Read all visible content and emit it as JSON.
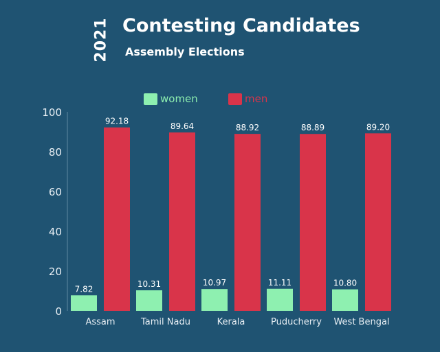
{
  "header": {
    "year": "2021",
    "title": "Contesting Candidates",
    "subtitle": "Assembly Elections"
  },
  "colors": {
    "background": "#1f5372",
    "women": "#8ef0b0",
    "men": "#d9344a",
    "axis_text": "#e7eef3"
  },
  "chart_data": {
    "type": "bar",
    "categories": [
      "Assam",
      "Tamil Nadu",
      "Kerala",
      "Puducherry",
      "West Bengal"
    ],
    "series": [
      {
        "name": "women",
        "color": "#8ef0b0",
        "values": [
          7.82,
          10.31,
          10.97,
          11.11,
          10.8
        ],
        "labels": [
          "7.82",
          "10.31",
          "10.97",
          "11.11",
          "10.80"
        ]
      },
      {
        "name": "men",
        "color": "#d9344a",
        "values": [
          92.18,
          89.64,
          88.92,
          88.89,
          89.2
        ],
        "labels": [
          "92.18",
          "89.64",
          "88.92",
          "88.89",
          "89.20"
        ]
      }
    ],
    "ylim": [
      0,
      100
    ],
    "yticks": [
      0,
      20,
      40,
      60,
      80,
      100
    ],
    "legend_position": "top",
    "grid": false
  }
}
